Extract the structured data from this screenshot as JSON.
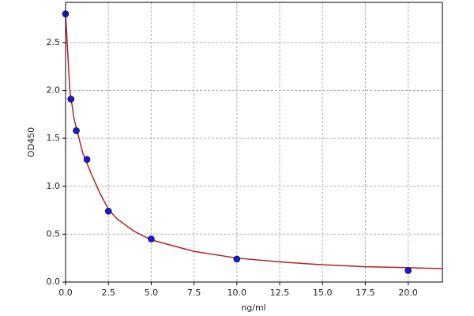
{
  "chart_data": {
    "type": "scatter",
    "xlabel": "ng/ml",
    "ylabel": "OD450",
    "xlim": [
      0,
      22
    ],
    "ylim": [
      0,
      2.92
    ],
    "xticks": [
      {
        "value": 0,
        "label": "0.0"
      },
      {
        "value": 2.5,
        "label": "2.5"
      },
      {
        "value": 5,
        "label": "5.0"
      },
      {
        "value": 7.5,
        "label": "7.5"
      },
      {
        "value": 10,
        "label": "10.0"
      },
      {
        "value": 12.5,
        "label": "12.5"
      },
      {
        "value": 15,
        "label": "15.0"
      },
      {
        "value": 17.5,
        "label": "17.5"
      },
      {
        "value": 20,
        "label": "20.0"
      }
    ],
    "yticks": [
      {
        "value": 0,
        "label": "0.0"
      },
      {
        "value": 0.5,
        "label": "0.5"
      },
      {
        "value": 1,
        "label": "1.0"
      },
      {
        "value": 1.5,
        "label": "1.5"
      },
      {
        "value": 2,
        "label": "2.0"
      },
      {
        "value": 2.5,
        "label": "2.5"
      }
    ],
    "grid": true,
    "points": {
      "color": "#1a1acc",
      "x": [
        0,
        0.313,
        0.625,
        1.25,
        2.5,
        5,
        10,
        20
      ],
      "y": [
        2.8,
        1.91,
        1.58,
        1.28,
        0.74,
        0.45,
        0.24,
        0.12
      ]
    },
    "curve": {
      "color": "#b22222",
      "x": [
        0,
        0.25,
        0.5,
        1,
        1.5,
        2,
        2.5,
        3,
        4,
        5,
        7.5,
        10,
        12.5,
        15,
        17.5,
        20,
        22
      ],
      "y": [
        2.8,
        2.0,
        1.7,
        1.35,
        1.13,
        0.93,
        0.76,
        0.66,
        0.53,
        0.44,
        0.32,
        0.25,
        0.21,
        0.18,
        0.16,
        0.15,
        0.14
      ]
    }
  }
}
